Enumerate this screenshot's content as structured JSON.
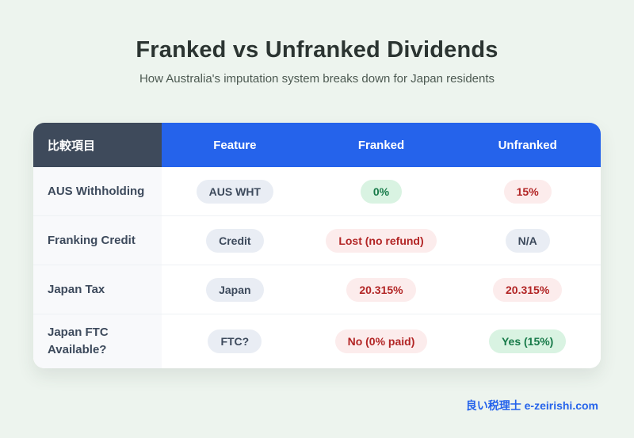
{
  "page": {
    "title": "Franked vs Unfranked Dividends",
    "subtitle": "How Australia's imputation system breaks down for Japan residents",
    "footer": "良い税理士 e-zeirishi.com"
  },
  "colors": {
    "background": "#edf4ee",
    "header_dark": "#3e4a5b",
    "header_blue": "#2563eb",
    "card_bg": "#ffffff",
    "label_column_bg": "#f8f9fb",
    "badge_slate_bg": "#e9edf4",
    "badge_slate_text": "#3d4a5c",
    "badge_green_bg": "#d9f3e2",
    "badge_green_text": "#177a49",
    "badge_red_bg": "#fcecec",
    "badge_red_text": "#b22525",
    "footer_blue": "#2563eb"
  },
  "table": {
    "header": {
      "label_column": "比較項目",
      "columns": [
        "Feature",
        "Franked",
        "Unfranked"
      ]
    },
    "rows": [
      {
        "label": "AUS Withholding",
        "cells": [
          {
            "text": "AUS WHT",
            "tone": "slate"
          },
          {
            "text": "0%",
            "tone": "green"
          },
          {
            "text": "15%",
            "tone": "red"
          }
        ]
      },
      {
        "label": "Franking Credit",
        "cells": [
          {
            "text": "Credit",
            "tone": "slate"
          },
          {
            "text": "Lost (no refund)",
            "tone": "red"
          },
          {
            "text": "N/A",
            "tone": "slate"
          }
        ]
      },
      {
        "label": "Japan Tax",
        "cells": [
          {
            "text": "Japan",
            "tone": "slate"
          },
          {
            "text": "20.315%",
            "tone": "red"
          },
          {
            "text": "20.315%",
            "tone": "red"
          }
        ]
      },
      {
        "label": "Japan FTC Available?",
        "cells": [
          {
            "text": "FTC?",
            "tone": "slate"
          },
          {
            "text": "No (0% paid)",
            "tone": "red"
          },
          {
            "text": "Yes (15%)",
            "tone": "green"
          }
        ]
      }
    ]
  },
  "chart_data": {
    "type": "table",
    "title": "Franked vs Unfranked Dividends",
    "subtitle": "How Australia's imputation system breaks down for Japan residents",
    "columns": [
      "比較項目",
      "Feature",
      "Franked",
      "Unfranked"
    ],
    "rows": [
      [
        "AUS Withholding",
        "AUS WHT",
        "0%",
        "15%"
      ],
      [
        "Franking Credit",
        "Credit",
        "Lost (no refund)",
        "N/A"
      ],
      [
        "Japan Tax",
        "Japan",
        "20.315%",
        "20.315%"
      ],
      [
        "Japan FTC Available?",
        "FTC?",
        "No (0% paid)",
        "Yes (15%)"
      ]
    ]
  }
}
